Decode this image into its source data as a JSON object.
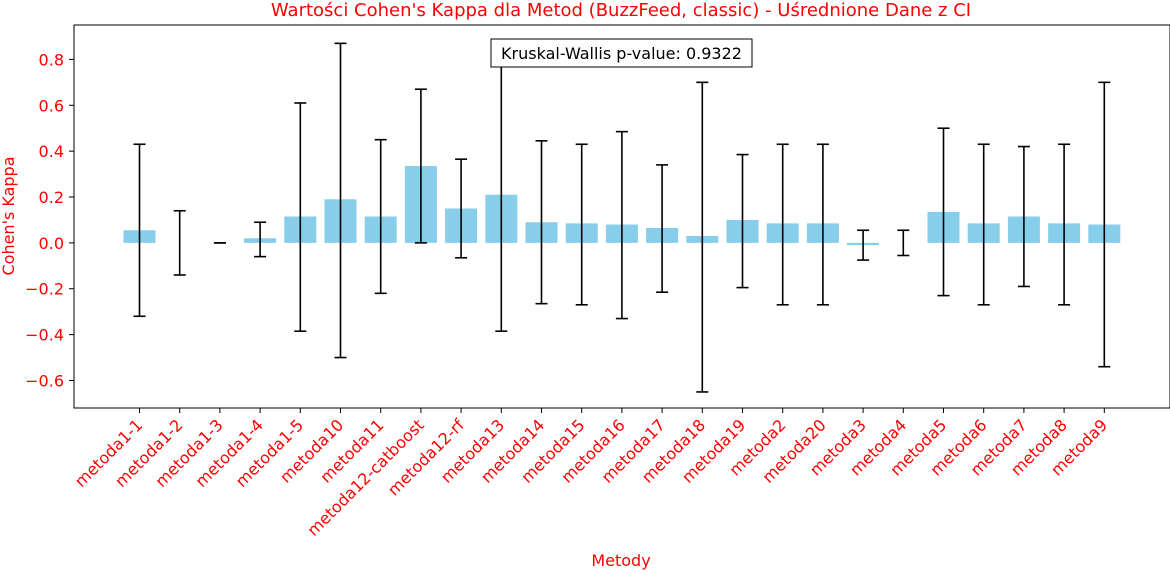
{
  "chart_data": {
    "type": "bar",
    "title": "Wartości Cohen's Kappa dla Metod (BuzzFeed, classic) - Uśrednione Dane z CI",
    "xlabel": "Metody",
    "ylabel": "Cohen's Kappa",
    "ylim": [
      -0.72,
      0.95
    ],
    "yticks": [
      "−0.6",
      "−0.4",
      "−0.2",
      "0.0",
      "0.2",
      "0.4",
      "0.6",
      "0.8"
    ],
    "ytick_values": [
      -0.6,
      -0.4,
      -0.2,
      0.0,
      0.2,
      0.4,
      0.6,
      0.8
    ],
    "grid": false,
    "bar_color": "#87ceeb",
    "error_color": "#000000",
    "text_color": "#ff0000",
    "annotation": "Kruskal-Wallis p-value: 0.9322",
    "categories": [
      "metoda1-1",
      "metoda1-2",
      "metoda1-3",
      "metoda1-4",
      "metoda1-5",
      "metoda10",
      "metoda11",
      "metoda12-catboost",
      "metoda12-rf",
      "metoda13",
      "metoda14",
      "metoda15",
      "metoda16",
      "metoda17",
      "metoda18",
      "metoda19",
      "metoda2",
      "metoda20",
      "metoda3",
      "metoda4",
      "metoda5",
      "metoda6",
      "metoda7",
      "metoda8",
      "metoda9"
    ],
    "values": [
      0.055,
      0.0,
      0.0,
      0.02,
      0.115,
      0.19,
      0.115,
      0.335,
      0.15,
      0.21,
      0.09,
      0.085,
      0.08,
      0.065,
      0.03,
      0.1,
      0.085,
      0.085,
      -0.01,
      0.0,
      0.135,
      0.085,
      0.115,
      0.085,
      0.08
    ],
    "ci_lower": [
      -0.32,
      -0.14,
      0.0,
      -0.06,
      -0.385,
      -0.5,
      -0.22,
      0.0,
      -0.065,
      -0.385,
      -0.265,
      -0.27,
      -0.33,
      -0.215,
      -0.65,
      -0.195,
      -0.27,
      -0.27,
      -0.075,
      -0.055,
      -0.23,
      -0.27,
      -0.19,
      -0.27,
      -0.54
    ],
    "ci_upper": [
      0.43,
      0.14,
      0.0,
      0.09,
      0.61,
      0.87,
      0.45,
      0.67,
      0.365,
      0.8,
      0.445,
      0.43,
      0.485,
      0.34,
      0.7,
      0.385,
      0.43,
      0.43,
      0.055,
      0.055,
      0.5,
      0.43,
      0.42,
      0.43,
      0.7
    ]
  }
}
